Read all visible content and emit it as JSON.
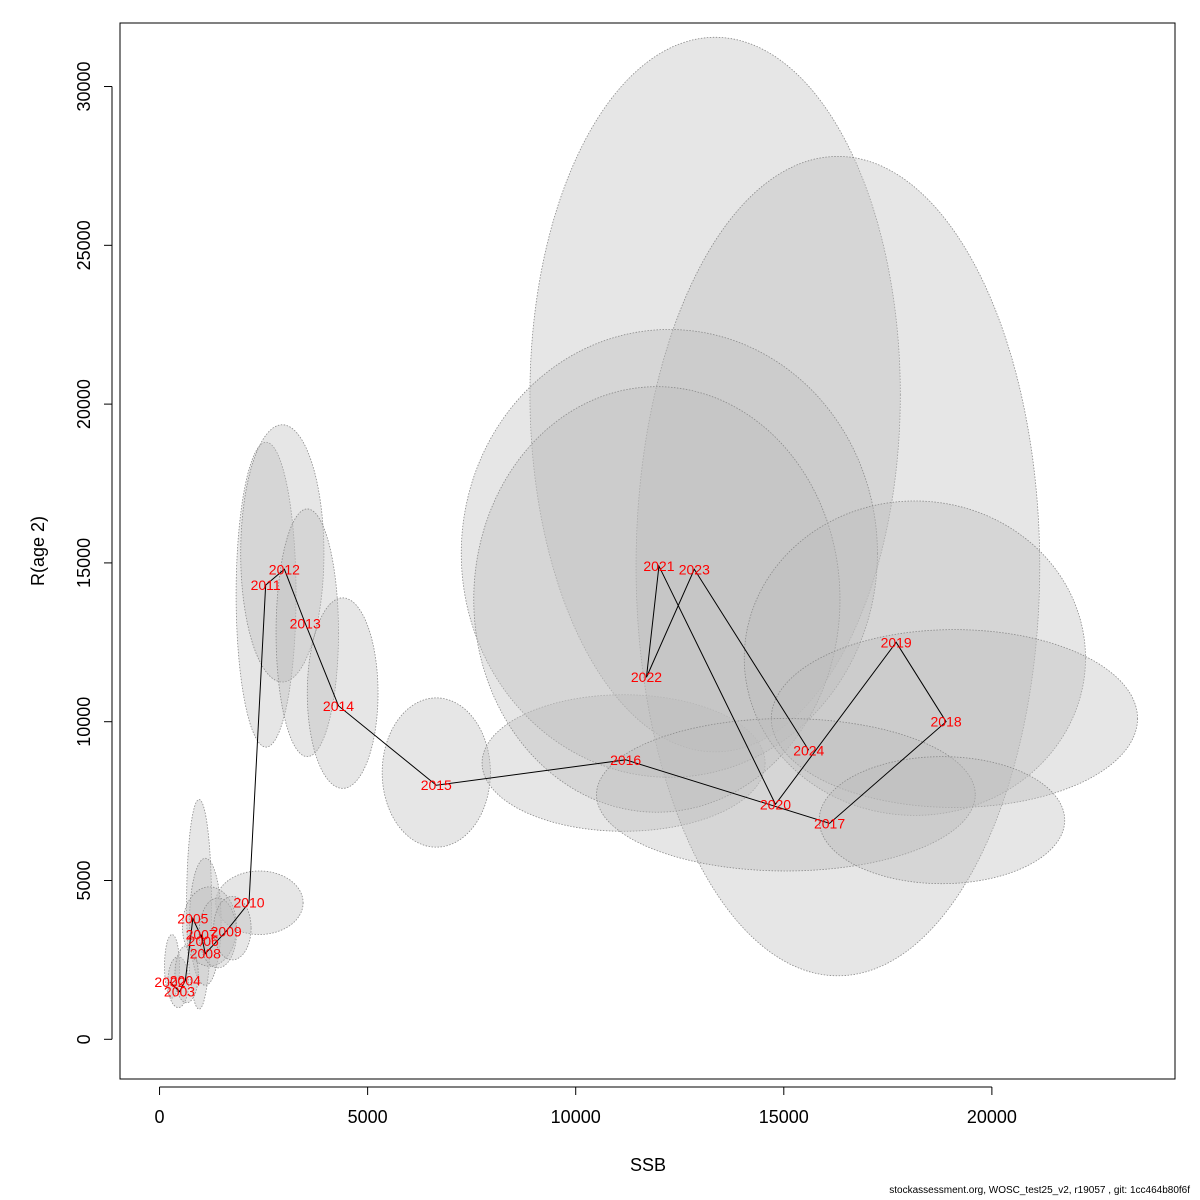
{
  "chart_data": {
    "type": "scatter",
    "xlabel": "SSB",
    "ylabel": "R(age 2)",
    "xlim": [
      -950,
      24400
    ],
    "ylim": [
      -1250,
      32000
    ],
    "x_ticks": [
      0,
      5000,
      10000,
      15000,
      20000
    ],
    "y_ticks": [
      0,
      5000,
      10000,
      15000,
      20000,
      25000,
      30000
    ],
    "x_tick_labels": [
      "0",
      "5000",
      "10000",
      "15000",
      "20000"
    ],
    "y_tick_labels": [
      "0",
      "5000",
      "10000",
      "15000",
      "20000",
      "25000",
      "30000"
    ],
    "grid": false,
    "legend": "none",
    "label_color": "#ff0000",
    "ellipse_fill": "#bebebe",
    "points": [
      {
        "label": "2002",
        "ssb": 250,
        "rec": 1800
      },
      {
        "label": "2003",
        "ssb": 480,
        "rec": 1500
      },
      {
        "label": "2004",
        "ssb": 620,
        "rec": 1850
      },
      {
        "label": "2005",
        "ssb": 800,
        "rec": 3800
      },
      {
        "label": "2006",
        "ssb": 1050,
        "rec": 3100
      },
      {
        "label": "2007",
        "ssb": 1000,
        "rec": 3300
      },
      {
        "label": "2008",
        "ssb": 1100,
        "rec": 2700
      },
      {
        "label": "2009",
        "ssb": 1600,
        "rec": 3400
      },
      {
        "label": "2010",
        "ssb": 2150,
        "rec": 4300
      },
      {
        "label": "2011",
        "ssb": 2550,
        "rec": 14300
      },
      {
        "label": "2012",
        "ssb": 3000,
        "rec": 14800
      },
      {
        "label": "2013",
        "ssb": 3500,
        "rec": 13100
      },
      {
        "label": "2014",
        "ssb": 4300,
        "rec": 10500
      },
      {
        "label": "2015",
        "ssb": 6650,
        "rec": 8000
      },
      {
        "label": "2016",
        "ssb": 11200,
        "rec": 8800
      },
      {
        "label": "2017",
        "ssb": 16100,
        "rec": 6800
      },
      {
        "label": "2018",
        "ssb": 18900,
        "rec": 10000
      },
      {
        "label": "2019",
        "ssb": 17700,
        "rec": 12500
      },
      {
        "label": "2020",
        "ssb": 14800,
        "rec": 7400
      },
      {
        "label": "2021",
        "ssb": 12000,
        "rec": 14900
      },
      {
        "label": "2022",
        "ssb": 11700,
        "rec": 11400
      },
      {
        "label": "2023",
        "ssb": 12850,
        "rec": 14800
      },
      {
        "label": "2024",
        "ssb": 15600,
        "rec": 9100
      }
    ],
    "ellipses": [
      {
        "cx": 2400,
        "cy": 4300,
        "rx": 1050,
        "ry": 1000
      },
      {
        "cx": 950,
        "cy": 4250,
        "rx": 300,
        "ry": 3300
      },
      {
        "cx": 1100,
        "cy": 3700,
        "rx": 380,
        "ry": 2000
      },
      {
        "cx": 1200,
        "cy": 3550,
        "rx": 650,
        "ry": 1250
      },
      {
        "cx": 1400,
        "cy": 3350,
        "rx": 450,
        "ry": 1100
      },
      {
        "cx": 1750,
        "cy": 3500,
        "rx": 450,
        "ry": 1000
      },
      {
        "cx": 300,
        "cy": 2300,
        "rx": 180,
        "ry": 1000
      },
      {
        "cx": 450,
        "cy": 1800,
        "rx": 250,
        "ry": 800
      },
      {
        "cx": 650,
        "cy": 2050,
        "rx": 280,
        "ry": 900
      },
      {
        "cx": 2560,
        "cy": 14000,
        "rx": 720,
        "ry": 4800
      },
      {
        "cx": 2950,
        "cy": 15300,
        "rx": 1000,
        "ry": 4050
      },
      {
        "cx": 3550,
        "cy": 12800,
        "rx": 750,
        "ry": 3900
      },
      {
        "cx": 4400,
        "cy": 10900,
        "rx": 850,
        "ry": 3000
      },
      {
        "cx": 6650,
        "cy": 8400,
        "rx": 1300,
        "ry": 2350
      },
      {
        "cx": 11150,
        "cy": 8700,
        "rx": 3400,
        "ry": 2150
      },
      {
        "cx": 13350,
        "cy": 20300,
        "rx": 4450,
        "ry": 11250
      },
      {
        "cx": 16300,
        "cy": 14900,
        "rx": 4850,
        "ry": 12900
      },
      {
        "cx": 12250,
        "cy": 15300,
        "rx": 5000,
        "ry": 7050
      },
      {
        "cx": 11950,
        "cy": 13850,
        "rx": 4400,
        "ry": 6700
      },
      {
        "cx": 18150,
        "cy": 12000,
        "rx": 4100,
        "ry": 4950
      },
      {
        "cx": 19100,
        "cy": 10100,
        "rx": 4400,
        "ry": 2800
      },
      {
        "cx": 15050,
        "cy": 7700,
        "rx": 4550,
        "ry": 2400
      },
      {
        "cx": 18800,
        "cy": 6900,
        "rx": 2950,
        "ry": 2000
      }
    ]
  },
  "footer": "stockassessment.org, WOSC_test25_v2, r19057 , git: 1cc464b80f6f"
}
